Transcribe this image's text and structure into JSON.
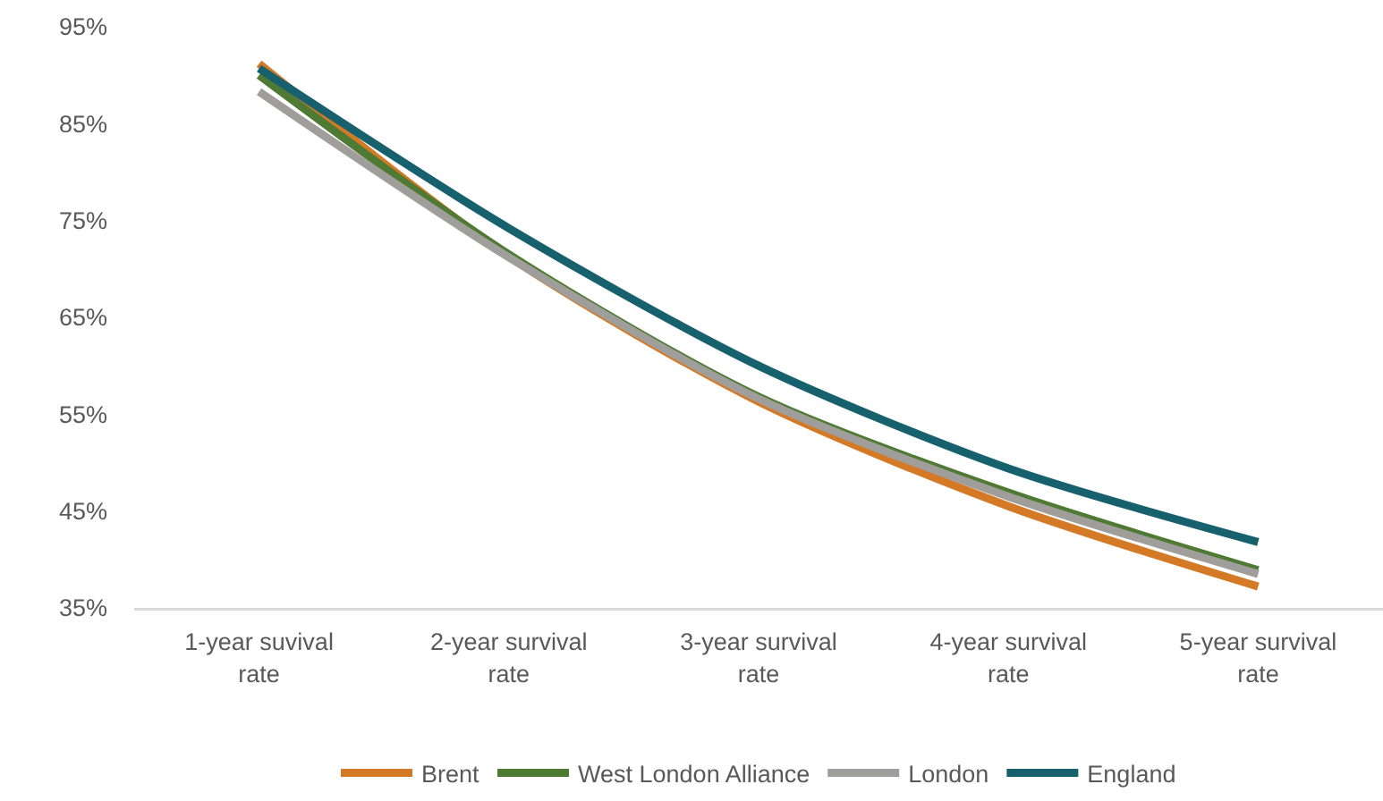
{
  "chart_data": {
    "type": "line",
    "categories": [
      "1-year suvival rate",
      "2-year survival rate",
      "3-year survival rate",
      "4-year survival rate",
      "5-year survival rate"
    ],
    "series": [
      {
        "name": "Brent",
        "color": "#d47a27",
        "values": [
          91.2,
          71.3,
          56.3,
          45.5,
          37.2
        ]
      },
      {
        "name": "West London Alliance",
        "color": "#4e7a34",
        "values": [
          90.0,
          71.5,
          56.8,
          46.9,
          38.9
        ]
      },
      {
        "name": "London",
        "color": "#a09e9b",
        "values": [
          88.3,
          71.2,
          56.6,
          46.5,
          38.5
        ]
      },
      {
        "name": "England",
        "color": "#17606e",
        "values": [
          90.7,
          74.2,
          60.0,
          49.4,
          41.8
        ]
      }
    ],
    "ylim": [
      35,
      95
    ],
    "yticks": [
      {
        "value": 35,
        "label": "35%"
      },
      {
        "value": 45,
        "label": "45%"
      },
      {
        "value": 55,
        "label": "55%"
      },
      {
        "value": 65,
        "label": "65%"
      },
      {
        "value": 75,
        "label": "75%"
      },
      {
        "value": 85,
        "label": "85%"
      },
      {
        "value": 95,
        "label": "95%"
      }
    ],
    "legend": "bottom",
    "marker": "none",
    "line_style": "solid"
  }
}
